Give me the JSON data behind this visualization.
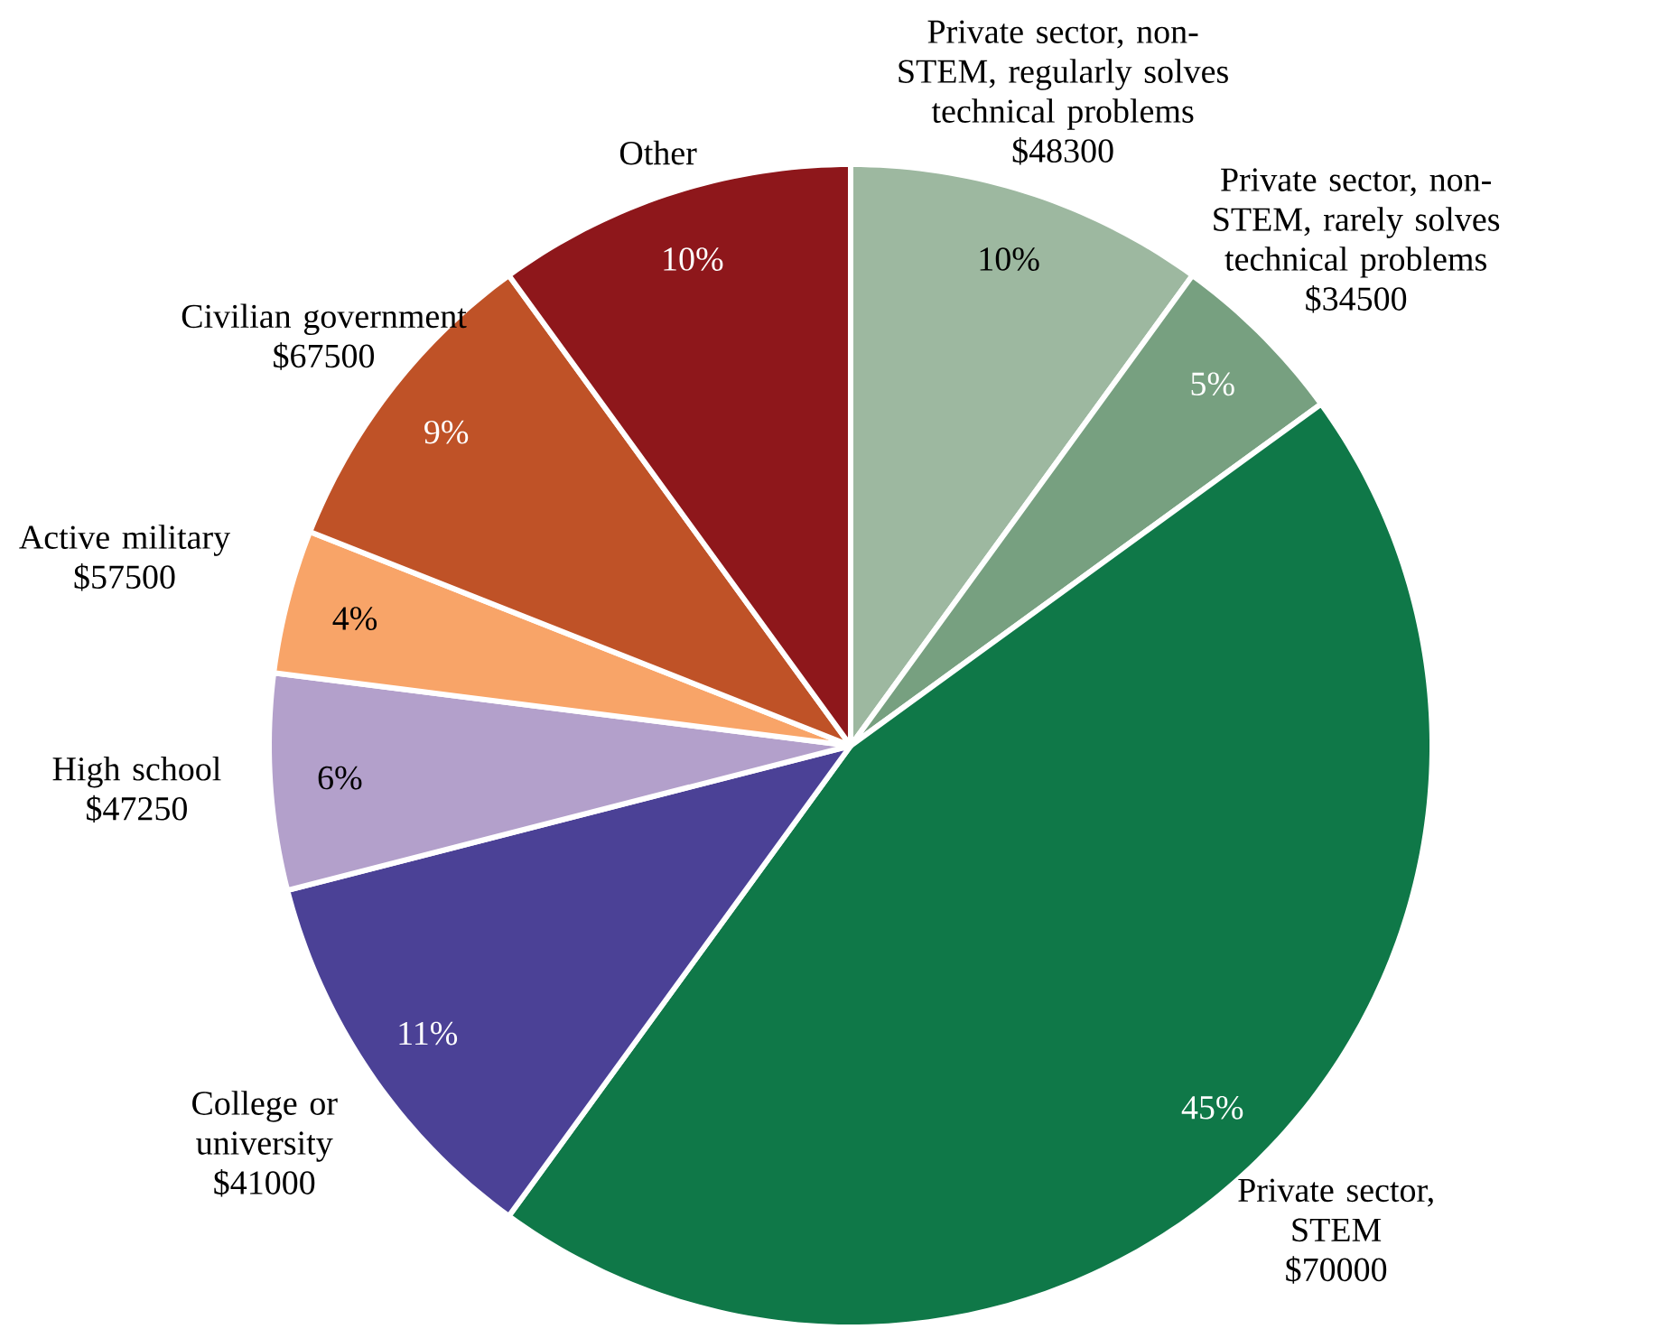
{
  "chart_data": {
    "type": "pie",
    "categories": [
      "Private sector, non-STEM, regularly solves technical problems",
      "Private sector, non-STEM, rarely solves technical problems",
      "Private sector, STEM",
      "College or university",
      "High school",
      "Active military",
      "Civilian government",
      "Other"
    ],
    "values": [
      10,
      5,
      45,
      11,
      6,
      4,
      9,
      10
    ],
    "value_labels": [
      "10%",
      "5%",
      "45%",
      "11%",
      "6%",
      "4%",
      "9%",
      "10%"
    ],
    "colors": [
      "#9db8a0",
      "#77a080",
      "#0f7848",
      "#4b4196",
      "#b3a0cb",
      "#f8a468",
      "#bf5227",
      "#8e171b"
    ],
    "annotations": [
      "$48300",
      "$34500",
      "$70000",
      "$41000",
      "$47250",
      "$57500",
      "$67500"
    ]
  }
}
